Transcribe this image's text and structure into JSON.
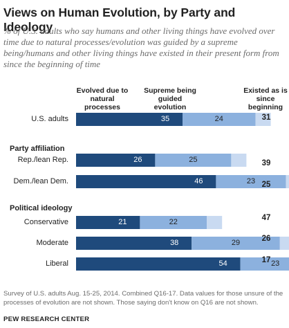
{
  "title": "Views on Human Evolution, by Party and Ideology",
  "subtitle": "% of U.S. adults who say humans and other living things have evolved over time due to natural processes/evolution was guided by a supreme being/humans and other living things have existed in their present form from since the beginning of time",
  "footnote": "Survey of U.S. adults Aug. 15-25, 2014. Combined Q16-17. Data values for those unsure of the processes of evolution are not shown. Those saying don't know on Q16 are not shown.",
  "source": "PEW RESEARCH CENTER",
  "colors": {
    "natural": "#1f4a7c",
    "supreme": "#8cb1de",
    "unsure": "#c9daf1"
  },
  "chart_data": {
    "type": "bar",
    "stacked": true,
    "column_headers": {
      "natural": "Evolved due to natural processes",
      "supreme": "Supreme being guided evolution",
      "existed": "Existed as is since beginning"
    },
    "section_labels": [
      "Party affiliation",
      "Political ideology"
    ],
    "categories": [
      "U.S. adults",
      "Rep./lean Rep.",
      "Dem./lean Dem.",
      "Conservative",
      "Moderate",
      "Liberal"
    ],
    "series": [
      {
        "name": "Evolved due to natural processes",
        "values": [
          35,
          26,
          46,
          21,
          38,
          54
        ]
      },
      {
        "name": "Supreme being guided evolution",
        "values": [
          24,
          25,
          23,
          22,
          29,
          23
        ]
      },
      {
        "name": "",
        "values": [
          5,
          5,
          5,
          5,
          5,
          5
        ]
      }
    ],
    "existed_values": [
      31,
      39,
      25,
      47,
      26,
      17
    ]
  }
}
